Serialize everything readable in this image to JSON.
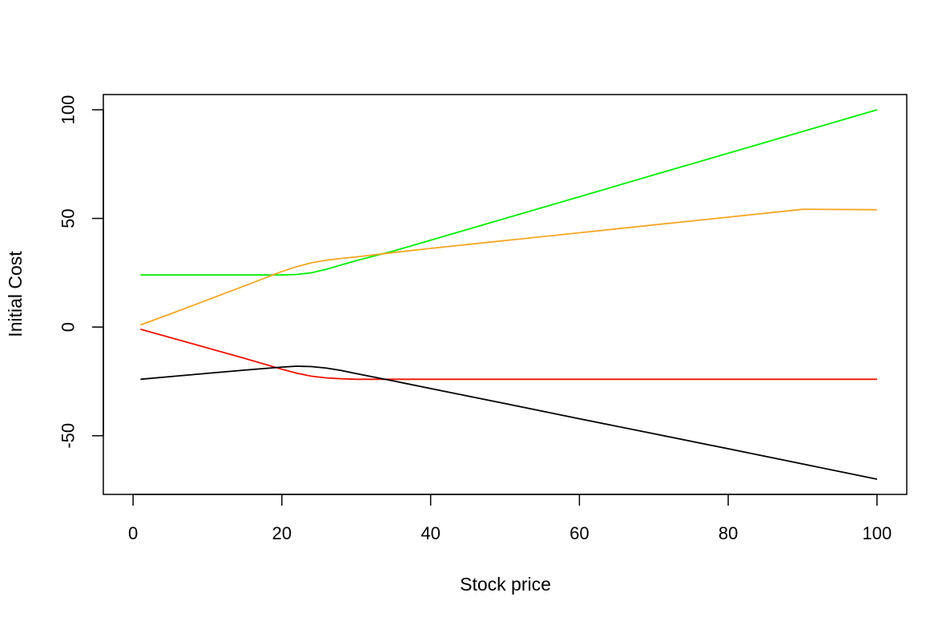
{
  "chart_data": {
    "type": "line",
    "title": "",
    "xlabel": "Stock price",
    "ylabel": "Initial Cost",
    "xlim": [
      -4,
      104
    ],
    "ylim": [
      -77,
      107
    ],
    "x_ticks": [
      0,
      20,
      40,
      60,
      80,
      100
    ],
    "y_ticks": [
      -50,
      0,
      50,
      100
    ],
    "grid": false,
    "legend": "none",
    "series": [
      {
        "color": "#00ee00",
        "x": [
          1,
          5,
          10,
          15,
          20,
          22,
          24,
          26,
          28,
          30,
          35,
          40,
          50,
          60,
          70,
          80,
          90,
          100
        ],
        "y": [
          24,
          24,
          24,
          24,
          24,
          24.2,
          25,
          26.6,
          28.6,
          30.6,
          35,
          40,
          50,
          60,
          70,
          80,
          90,
          100
        ]
      },
      {
        "color": "#f5a623",
        "x": [
          1,
          5,
          10,
          15,
          20,
          22,
          24,
          26,
          28,
          30,
          35,
          40,
          50,
          60,
          70,
          80,
          90,
          100
        ],
        "y": [
          1,
          6,
          12.5,
          19,
          25.6,
          27.8,
          29.6,
          30.8,
          31.6,
          32.3,
          34.3,
          36.2,
          39.8,
          43.4,
          47.0,
          50.6,
          54.2,
          54
        ]
      },
      {
        "color": "#ee1100",
        "x": [
          1,
          5,
          10,
          15,
          20,
          22,
          24,
          26,
          28,
          30,
          35,
          40,
          50,
          60,
          70,
          80,
          90,
          100
        ],
        "y": [
          -1,
          -4.8,
          -9.6,
          -14.4,
          -19.4,
          -21.2,
          -22.6,
          -23.4,
          -23.8,
          -24,
          -24,
          -24,
          -24,
          -24,
          -24,
          -24,
          -24,
          -24
        ]
      },
      {
        "color": "#000000",
        "x": [
          1,
          5,
          10,
          15,
          20,
          22,
          24,
          26,
          28,
          30,
          35,
          40,
          50,
          60,
          70,
          80,
          90,
          100
        ],
        "y": [
          -24,
          -22.8,
          -21.3,
          -19.8,
          -18.4,
          -18,
          -18.2,
          -18.9,
          -20,
          -21.4,
          -24.8,
          -28.3,
          -35.2,
          -42.2,
          -49.1,
          -56,
          -63,
          -70
        ]
      }
    ]
  }
}
